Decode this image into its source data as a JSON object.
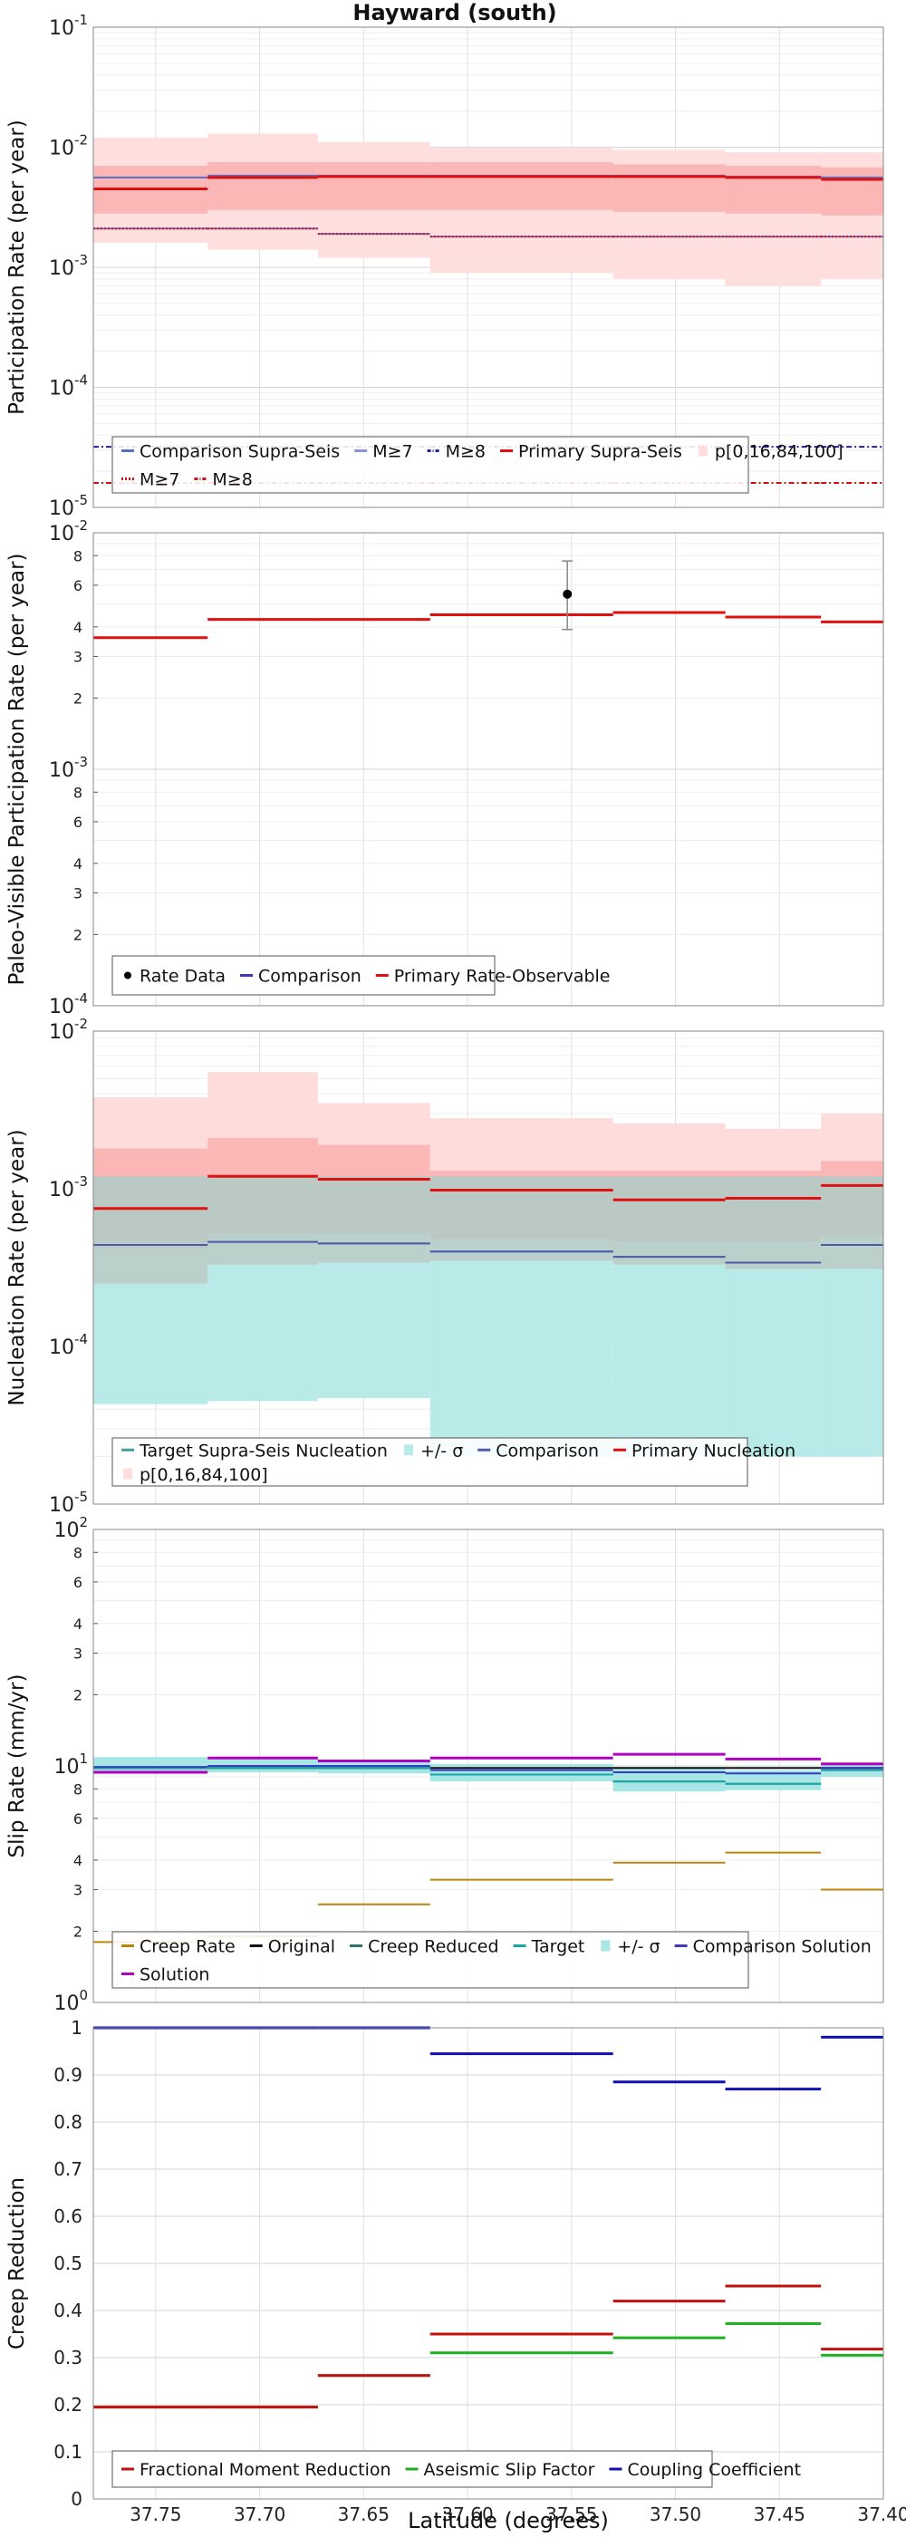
{
  "title": "Hayward (south)",
  "xlabel": "Latitude (degrees)",
  "xlim": [
    37.78,
    37.4
  ],
  "x_ticks": [
    37.75,
    37.7,
    37.65,
    37.6,
    37.55,
    37.5,
    37.45,
    37.4
  ],
  "x_tick_labels": [
    "37.75",
    "37.70",
    "37.65",
    "37.60",
    "37.55",
    "37.50",
    "37.45",
    "37.40"
  ],
  "segments": [
    [
      37.78,
      37.725
    ],
    [
      37.725,
      37.672
    ],
    [
      37.672,
      37.618
    ],
    [
      37.618,
      37.53
    ],
    [
      37.53,
      37.476
    ],
    [
      37.476,
      37.43
    ],
    [
      37.43,
      37.4
    ]
  ],
  "chart_data": [
    {
      "type": "line",
      "ylabel": "Participation Rate (per year)",
      "yscale": "log",
      "ylim": [
        1e-05,
        0.1
      ],
      "y_ticks": [
        1e-05,
        0.0001,
        0.001,
        0.01,
        0.1
      ],
      "y_tick_labels": [
        [
          "10",
          "-5"
        ],
        [
          "10",
          "-4"
        ],
        [
          "10",
          "-3"
        ],
        [
          "10",
          "-2"
        ],
        [
          "10",
          "-1"
        ]
      ],
      "segments": [
        [
          37.78,
          37.725
        ],
        [
          37.725,
          37.672
        ],
        [
          37.672,
          37.618
        ],
        [
          37.618,
          37.53
        ],
        [
          37.53,
          37.476
        ],
        [
          37.476,
          37.43
        ],
        [
          37.43,
          37.4
        ]
      ],
      "bands": [
        {
          "lower": [
            0.0016,
            0.0014,
            0.0012,
            0.0009,
            0.0008,
            0.0007,
            0.0008
          ],
          "upper": [
            0.012,
            0.013,
            0.011,
            0.01,
            0.0095,
            0.009,
            0.009
          ],
          "color": "#ffdede"
        },
        {
          "lower": [
            0.0028,
            0.003,
            0.003,
            0.003,
            0.0029,
            0.0028,
            0.0027
          ],
          "upper": [
            0.007,
            0.0075,
            0.0075,
            0.0075,
            0.0072,
            0.007,
            0.0068
          ],
          "color": "#fbb6b6"
        }
      ],
      "series": [
        {
          "name": "Comparison Supra-Seis",
          "values": [
            0.0056,
            0.0058,
            0.0058,
            0.0058,
            0.0058,
            0.0057,
            0.0056
          ],
          "color": "#5a6fc4",
          "width": 2
        },
        {
          "name": "M≥7",
          "values": [
            0.0021,
            0.0021,
            0.0019,
            0.0018,
            0.0018,
            0.0018,
            0.0018
          ],
          "color": "#6d72d2",
          "width": 2
        },
        {
          "name": "M≥8",
          "values": [
            3.2e-05,
            3.2e-05,
            3.2e-05,
            3.2e-05,
            3.2e-05,
            3.2e-05,
            3.2e-05
          ],
          "color": "#20209a",
          "width": 2,
          "dash": "6,3,2,3"
        },
        {
          "name": "Primary Supra-Seis",
          "values": [
            0.0045,
            0.0056,
            0.0057,
            0.0057,
            0.0057,
            0.0056,
            0.0054
          ],
          "color": "#e01010",
          "width": 3
        },
        {
          "name": "M≥7",
          "values": [
            0.0021,
            0.0021,
            0.0019,
            0.0018,
            0.0018,
            0.0018,
            0.0018
          ],
          "color": "#cc1111",
          "width": 2,
          "dash": "2,2"
        },
        {
          "name": "M≥8",
          "values": [
            1.6e-05,
            1.6e-05,
            1.6e-05,
            1.6e-05,
            1.6e-05,
            1.6e-05,
            1.6e-05
          ],
          "color": "#cc1111",
          "width": 2,
          "dash": "6,3,2,3"
        }
      ],
      "legend": {
        "rows": [
          [
            {
              "label": "Comparison Supra-Seis",
              "kind": "line",
              "color": "#5a6fc4"
            },
            {
              "label": "M≥7",
              "kind": "line",
              "color": "#8a8fe0"
            },
            {
              "label": "M≥8",
              "kind": "dashdot",
              "color": "#20209a"
            },
            {
              "label": "Primary Supra-Seis",
              "kind": "line",
              "color": "#e01010"
            },
            {
              "label": "p[0,16,84,100]",
              "kind": "patch",
              "color": "#ffdede"
            }
          ],
          [
            {
              "label": "M≥7",
              "kind": "dot",
              "color": "#cc1111"
            },
            {
              "label": "M≥8",
              "kind": "dashdot",
              "color": "#cc1111"
            }
          ]
        ]
      }
    },
    {
      "type": "line",
      "ylabel": "Paleo-Visible Participation Rate (per year)",
      "yscale": "log",
      "ylim": [
        0.0001,
        0.01
      ],
      "y_ticks": [
        0.0001,
        0.001,
        0.01
      ],
      "y_tick_labels": [
        [
          "10",
          "-4"
        ],
        [
          "10",
          "-3"
        ],
        [
          "10",
          "-2"
        ]
      ],
      "minor_labels": true,
      "segments": [
        [
          37.78,
          37.725
        ],
        [
          37.725,
          37.672
        ],
        [
          37.672,
          37.618
        ],
        [
          37.618,
          37.53
        ],
        [
          37.53,
          37.476
        ],
        [
          37.476,
          37.43
        ],
        [
          37.43,
          37.4
        ]
      ],
      "series": [
        {
          "name": "Comparison",
          "values": [
            0.0036,
            0.0043,
            0.0043,
            0.0045,
            0.0046,
            0.0044,
            0.0042
          ],
          "color": "#3a3ac0",
          "width": 2
        },
        {
          "name": "Primary Rate-Observable",
          "values": [
            0.0036,
            0.0043,
            0.0043,
            0.0045,
            0.0046,
            0.0044,
            0.0042
          ],
          "color": "#e01010",
          "width": 3
        }
      ],
      "points": [
        {
          "name": "Rate Data",
          "x": 37.552,
          "y": 0.0055,
          "ylow": 0.0039,
          "yhigh": 0.0076
        }
      ],
      "legend": {
        "rows": [
          [
            {
              "label": "Rate Data",
              "kind": "marker",
              "color": "#000000"
            },
            {
              "label": "Comparison",
              "kind": "line",
              "color": "#3a3ac0"
            },
            {
              "label": "Primary Rate-Observable",
              "kind": "line",
              "color": "#e01010"
            }
          ]
        ]
      }
    },
    {
      "type": "line",
      "ylabel": "Nucleation Rate (per year)",
      "yscale": "log",
      "ylim": [
        1e-05,
        0.01
      ],
      "y_ticks": [
        1e-05,
        0.0001,
        0.001,
        0.01
      ],
      "y_tick_labels": [
        [
          "10",
          "-5"
        ],
        [
          "10",
          "-4"
        ],
        [
          "10",
          "-3"
        ],
        [
          "10",
          "-2"
        ]
      ],
      "segments": [
        [
          37.78,
          37.725
        ],
        [
          37.725,
          37.672
        ],
        [
          37.672,
          37.618
        ],
        [
          37.618,
          37.53
        ],
        [
          37.53,
          37.476
        ],
        [
          37.476,
          37.43
        ],
        [
          37.43,
          37.4
        ]
      ],
      "bands": [
        {
          "lower": [
            4.3e-05,
            4.5e-05,
            4.7e-05,
            2e-05,
            2e-05,
            2e-05,
            2e-05
          ],
          "upper": [
            0.0012,
            0.0012,
            0.0012,
            0.0012,
            0.0012,
            0.0012,
            0.0012
          ],
          "color": "#b8eae8"
        },
        {
          "lower": [
            0.00025,
            0.00033,
            0.00034,
            0.00035,
            0.00033,
            0.00031,
            0.00031
          ],
          "upper": [
            0.0038,
            0.0055,
            0.0035,
            0.0028,
            0.0026,
            0.0024,
            0.003
          ],
          "color": "#ffdcdc"
        },
        {
          "lower": [
            0.00042,
            0.00052,
            0.00052,
            0.00048,
            0.00046,
            0.00046,
            0.0005
          ],
          "upper": [
            0.0018,
            0.0021,
            0.0019,
            0.0013,
            0.0013,
            0.0013,
            0.0015
          ],
          "color": "#fbb6b6"
        },
        {
          "lower": [
            0.00025,
            0.00033,
            0.00034,
            0.00035,
            0.00033,
            0.00031,
            0.00031
          ],
          "upper": [
            0.0012,
            0.0012,
            0.0012,
            0.0012,
            0.0012,
            0.0012,
            0.0012
          ],
          "color": "rgba(175,205,200,0.85)"
        }
      ],
      "series": [
        {
          "name": "Target Supra-Seis Nucleation",
          "values": [
            0.00044,
            0.00046,
            0.00045,
            0.0004,
            0.00037,
            0.00034,
            0.00044
          ],
          "color": "#40a0a0",
          "width": 2
        },
        {
          "name": "Comparison",
          "values": [
            0.00044,
            0.00046,
            0.00045,
            0.0004,
            0.00037,
            0.00034,
            0.00044
          ],
          "color": "#505aa8",
          "width": 2
        },
        {
          "name": "Primary Nucleation",
          "values": [
            0.00075,
            0.0012,
            0.00115,
            0.00098,
            0.00085,
            0.00087,
            0.00105
          ],
          "color": "#e01010",
          "width": 3
        }
      ],
      "legend": {
        "rows": [
          [
            {
              "label": "Target Supra-Seis Nucleation",
              "kind": "line",
              "color": "#40a0a0"
            },
            {
              "label": "+/- σ",
              "kind": "patch",
              "color": "#b8eae8"
            },
            {
              "label": "Comparison",
              "kind": "line",
              "color": "#505aa8"
            },
            {
              "label": "Primary Nucleation",
              "kind": "line",
              "color": "#e01010"
            }
          ],
          [
            {
              "label": "p[0,16,84,100]",
              "kind": "patch",
              "color": "#ffdede"
            }
          ]
        ]
      }
    },
    {
      "type": "line",
      "ylabel": "Slip Rate (mm/yr)",
      "yscale": "log",
      "ylim": [
        1,
        100
      ],
      "y_ticks": [
        1,
        10,
        100
      ],
      "y_tick_labels": [
        [
          "10",
          "0"
        ],
        [
          "10",
          "1"
        ],
        [
          "10",
          "2"
        ]
      ],
      "minor_labels": true,
      "segments": [
        [
          37.78,
          37.725
        ],
        [
          37.725,
          37.672
        ],
        [
          37.672,
          37.618
        ],
        [
          37.618,
          37.53
        ],
        [
          37.53,
          37.476
        ],
        [
          37.476,
          37.43
        ],
        [
          37.43,
          37.4
        ]
      ],
      "bands": [
        {
          "lower": [
            9.3,
            9.4,
            9.3,
            8.6,
            7.8,
            7.9,
            9.0
          ],
          "upper": [
            10.9,
            10.7,
            10.4,
            10.2,
            9.9,
            9.6,
            10.3
          ],
          "color": "#a6e6e4"
        }
      ],
      "series": [
        {
          "name": "Creep Rate",
          "values": [
            1.8,
            1.9,
            2.6,
            3.3,
            3.9,
            4.3,
            3.0
          ],
          "color": "#b8860b",
          "width": 2
        },
        {
          "name": "Original",
          "values": [
            9.8,
            9.8,
            9.8,
            9.8,
            9.8,
            9.8,
            9.8
          ],
          "color": "#111111",
          "width": 2
        },
        {
          "name": "Creep Reduced",
          "values": [
            9.8,
            9.8,
            9.8,
            9.2,
            8.6,
            8.4,
            9.6
          ],
          "color": "#2f7070",
          "width": 2
        },
        {
          "name": "Target",
          "values": [
            9.8,
            9.8,
            9.8,
            9.2,
            8.6,
            8.4,
            9.6
          ],
          "color": "#1aa6a6",
          "width": 2
        },
        {
          "name": "Comparison Solution",
          "values": [
            9.9,
            10.0,
            10.0,
            9.6,
            9.4,
            9.3,
            9.8
          ],
          "color": "#3a3ac0",
          "width": 2
        },
        {
          "name": "Solution",
          "values": [
            9.4,
            10.8,
            10.5,
            10.8,
            11.2,
            10.7,
            10.2
          ],
          "color": "#b000c0",
          "width": 3
        }
      ],
      "legend": {
        "rows": [
          [
            {
              "label": "Creep Rate",
              "kind": "line",
              "color": "#b8860b"
            },
            {
              "label": "Original",
              "kind": "line",
              "color": "#111111"
            },
            {
              "label": "Creep Reduced",
              "kind": "line",
              "color": "#2f7070"
            },
            {
              "label": "Target",
              "kind": "line",
              "color": "#1aa6a6"
            },
            {
              "label": "+/- σ",
              "kind": "patch",
              "color": "#a6e6e4"
            },
            {
              "label": "Comparison Solution",
              "kind": "line",
              "color": "#3a3ac0"
            }
          ],
          [
            {
              "label": "Solution",
              "kind": "line",
              "color": "#b000c0"
            }
          ]
        ]
      }
    },
    {
      "type": "line",
      "ylabel": "Creep Reduction",
      "yscale": "linear",
      "ylim": [
        0,
        1
      ],
      "y_ticks": [
        0,
        0.1,
        0.2,
        0.3,
        0.4,
        0.5,
        0.6,
        0.7,
        0.8,
        0.9,
        1
      ],
      "y_tick_labels": [
        "0",
        "0.1",
        "0.2",
        "0.3",
        "0.4",
        "0.5",
        "0.6",
        "0.7",
        "0.8",
        "0.9",
        "1"
      ],
      "segments": [
        [
          37.78,
          37.725
        ],
        [
          37.725,
          37.672
        ],
        [
          37.672,
          37.618
        ],
        [
          37.618,
          37.53
        ],
        [
          37.53,
          37.476
        ],
        [
          37.476,
          37.43
        ],
        [
          37.43,
          37.4
        ]
      ],
      "series": [
        {
          "name": "Coupling Coefficient",
          "values": [
            1.0,
            1.0,
            1.0,
            0.945,
            0.885,
            0.87,
            0.98
          ],
          "color": "#1010b0",
          "width": 3
        },
        {
          "name": "Aseismic Slip Factor",
          "values": [
            0.195,
            0.195,
            0.262,
            0.31,
            0.342,
            0.372,
            0.305
          ],
          "color": "#20b020",
          "width": 3
        },
        {
          "name": "Fractional Moment Reduction",
          "values": [
            0.195,
            0.195,
            0.262,
            0.35,
            0.42,
            0.452,
            0.318
          ],
          "color": "#c01010",
          "width": 3
        }
      ],
      "legend": {
        "rows": [
          [
            {
              "label": "Fractional Moment Reduction",
              "kind": "line",
              "color": "#c01010"
            },
            {
              "label": "Aseismic Slip Factor",
              "kind": "line",
              "color": "#20b020"
            },
            {
              "label": "Coupling Coefficient",
              "kind": "line",
              "color": "#1010b0"
            }
          ]
        ]
      }
    }
  ]
}
